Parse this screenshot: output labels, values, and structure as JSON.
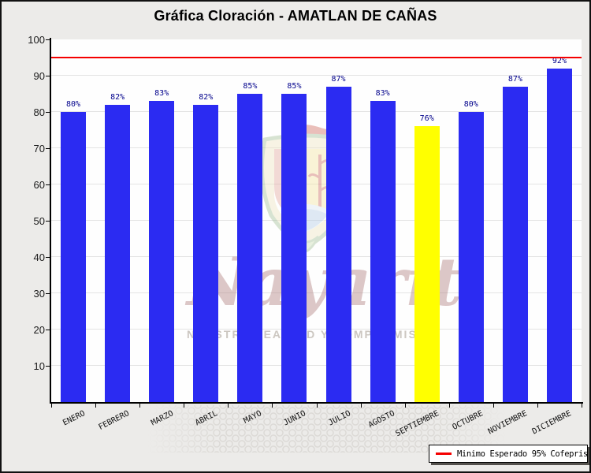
{
  "chart_data": {
    "type": "bar",
    "title": "Gráfica Cloración - AMATLAN DE CAÑAS",
    "categories": [
      "ENERO",
      "FEBRERO",
      "MARZO",
      "ABRIL",
      "MAYO",
      "JUNIO",
      "JULIO",
      "AGOSTO",
      "SEPTIEMBRE",
      "OCTUBRE",
      "NOVIEMBRE",
      "DICIEMBRE"
    ],
    "values": [
      80,
      82,
      83,
      82,
      85,
      85,
      87,
      83,
      76,
      80,
      87,
      92
    ],
    "value_labels": [
      "80%",
      "82%",
      "83%",
      "82%",
      "85%",
      "85%",
      "87%",
      "83%",
      "76%",
      "80%",
      "87%",
      "92%"
    ],
    "bar_color": "#2B2BF2",
    "highlight_color": "#FFFF00",
    "highlight_index": 8,
    "value_label_color": "#00008B",
    "ylim": [
      0,
      100
    ],
    "yticks": [
      10,
      20,
      30,
      40,
      50,
      60,
      70,
      80,
      90,
      100
    ],
    "grid": true,
    "threshold": {
      "value": 95,
      "color": "#F50000",
      "label": "Minimo Esperado 95% Cofepris"
    },
    "legend_position": "bottom-right"
  },
  "watermark": {
    "script_text": "Nayarit",
    "slogan": "NUESTRA LEALTAD Y COMPROMISO"
  }
}
